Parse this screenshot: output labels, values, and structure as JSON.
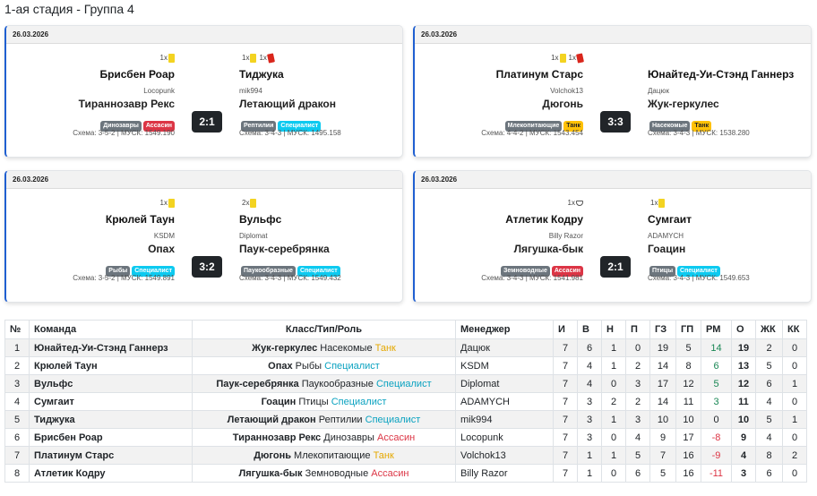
{
  "page_title": "1-ая стадия - Группа 4",
  "matches": [
    {
      "date": "26.03.2026",
      "score": "2:1",
      "home": {
        "cards": [
          {
            "count": "1x",
            "type": "yellow"
          }
        ],
        "team": "Брисбен Роар",
        "manager": "Locopunk",
        "class": "Тираннозавр Рекс",
        "badges": [
          {
            "label": "Динозавры",
            "color": "gray"
          },
          {
            "label": "Ассасин",
            "color": "red"
          }
        ],
        "scheme": "Схема: 3-5-2 | МУСК: 1549.190"
      },
      "away": {
        "cards": [
          {
            "count": "1x",
            "type": "yellow"
          },
          {
            "count": "1x",
            "type": "red"
          }
        ],
        "team": "Тиджука",
        "manager": "mik994",
        "class": "Летающий дракон",
        "badges": [
          {
            "label": "Рептилии",
            "color": "gray"
          },
          {
            "label": "Специалист",
            "color": "cyan"
          }
        ],
        "scheme": "Схема: 3-4-3 | МУСК: 1495.158"
      }
    },
    {
      "date": "26.03.2026",
      "score": "3:3",
      "home": {
        "cards": [
          {
            "count": "1x",
            "type": "yellow"
          },
          {
            "count": "1x",
            "type": "red"
          }
        ],
        "team": "Платинум Старс",
        "manager": "Volchok13",
        "class": "Дюгонь",
        "badges": [
          {
            "label": "Млекопитающие",
            "color": "gray"
          },
          {
            "label": "Танк",
            "color": "yellow"
          }
        ],
        "scheme": "Схема: 4-4-2 | МУСК: 1543.454"
      },
      "away": {
        "cards": [],
        "team": "Юнайтед-Уи-Стэнд Ганнерз",
        "manager": "Дацюк",
        "class": "Жук-геркулес",
        "badges": [
          {
            "label": "Насекомые",
            "color": "gray"
          },
          {
            "label": "Танк",
            "color": "yellow"
          }
        ],
        "scheme": "Схема: 3-4-3 | МУСК: 1538.280"
      }
    },
    {
      "date": "26.03.2026",
      "score": "3:2",
      "home": {
        "cards": [
          {
            "count": "1x",
            "type": "yellow"
          }
        ],
        "team": "Крюлей Таун",
        "manager": "KSDM",
        "class": "Опах",
        "badges": [
          {
            "label": "Рыбы",
            "color": "gray"
          },
          {
            "label": "Специалист",
            "color": "cyan"
          }
        ],
        "scheme": "Схема: 3-5-2 | МУСК: 1549.891"
      },
      "away": {
        "cards": [
          {
            "count": "2x",
            "type": "yellow"
          }
        ],
        "team": "Вульфс",
        "manager": "Diplomat",
        "class": "Паук-серебрянка",
        "badges": [
          {
            "label": "Паукообразные",
            "color": "gray"
          },
          {
            "label": "Специалист",
            "color": "cyan"
          }
        ],
        "scheme": "Схема: 3-4-3 | МУСК: 1549.432"
      }
    },
    {
      "date": "26.03.2026",
      "score": "2:1",
      "home": {
        "cards": [
          {
            "count": "1x",
            "type": "glove"
          }
        ],
        "team": "Атлетик Кодру",
        "manager": "Billy Razor",
        "class": "Лягушка-бык",
        "badges": [
          {
            "label": "Земноводные",
            "color": "gray"
          },
          {
            "label": "Ассасин",
            "color": "red"
          }
        ],
        "scheme": "Схема: 3-4-3 | МУСК: 1541.981"
      },
      "away": {
        "cards": [
          {
            "count": "1x",
            "type": "yellow"
          }
        ],
        "team": "Сумгаит",
        "manager": "ADAMYCH",
        "class": "Гоацин",
        "badges": [
          {
            "label": "Птицы",
            "color": "gray"
          },
          {
            "label": "Специалист",
            "color": "cyan"
          }
        ],
        "scheme": "Схема: 3-4-3 | МУСК: 1549.653"
      }
    }
  ],
  "standings": {
    "headers": [
      "№",
      "Команда",
      "Класс/Тип/Роль",
      "Менеджер",
      "И",
      "В",
      "Н",
      "П",
      "ГЗ",
      "ГП",
      "РМ",
      "О",
      "ЖК",
      "КК"
    ],
    "rows": [
      {
        "n": "1",
        "team": "Юнайтед-Уи-Стэнд Ганнерз",
        "cls": "Жук-геркулес",
        "type": "Насекомые",
        "role": "Танк",
        "role_kind": "tank",
        "manager": "Дацюк",
        "g": "7",
        "w": "6",
        "d": "1",
        "l": "0",
        "gf": "19",
        "ga": "5",
        "diff": "14",
        "pts": "19",
        "yc": "2",
        "rc": "0"
      },
      {
        "n": "2",
        "team": "Крюлей Таун",
        "cls": "Опах",
        "type": "Рыбы",
        "role": "Специалист",
        "role_kind": "spec",
        "manager": "KSDM",
        "g": "7",
        "w": "4",
        "d": "1",
        "l": "2",
        "gf": "14",
        "ga": "8",
        "diff": "6",
        "pts": "13",
        "yc": "5",
        "rc": "0"
      },
      {
        "n": "3",
        "team": "Вульфс",
        "cls": "Паук-серебрянка",
        "type": "Паукообразные",
        "role": "Специалист",
        "role_kind": "spec",
        "manager": "Diplomat",
        "g": "7",
        "w": "4",
        "d": "0",
        "l": "3",
        "gf": "17",
        "ga": "12",
        "diff": "5",
        "pts": "12",
        "yc": "6",
        "rc": "1"
      },
      {
        "n": "4",
        "team": "Сумгаит",
        "cls": "Гоацин",
        "type": "Птицы",
        "role": "Специалист",
        "role_kind": "spec",
        "manager": "ADAMYCH",
        "g": "7",
        "w": "3",
        "d": "2",
        "l": "2",
        "gf": "14",
        "ga": "11",
        "diff": "3",
        "pts": "11",
        "yc": "4",
        "rc": "0"
      },
      {
        "n": "5",
        "team": "Тиджука",
        "cls": "Летающий дракон",
        "type": "Рептилии",
        "role": "Специалист",
        "role_kind": "spec",
        "manager": "mik994",
        "g": "7",
        "w": "3",
        "d": "1",
        "l": "3",
        "gf": "10",
        "ga": "10",
        "diff": "0",
        "pts": "10",
        "yc": "5",
        "rc": "1"
      },
      {
        "n": "6",
        "team": "Брисбен Роар",
        "cls": "Тираннозавр Рекс",
        "type": "Динозавры",
        "role": "Ассасин",
        "role_kind": "ass",
        "manager": "Locopunk",
        "g": "7",
        "w": "3",
        "d": "0",
        "l": "4",
        "gf": "9",
        "ga": "17",
        "diff": "-8",
        "pts": "9",
        "yc": "4",
        "rc": "0"
      },
      {
        "n": "7",
        "team": "Платинум Старс",
        "cls": "Дюгонь",
        "type": "Млекопитающие",
        "role": "Танк",
        "role_kind": "tank",
        "manager": "Volchok13",
        "g": "7",
        "w": "1",
        "d": "1",
        "l": "5",
        "gf": "7",
        "ga": "16",
        "diff": "-9",
        "pts": "4",
        "yc": "8",
        "rc": "2"
      },
      {
        "n": "8",
        "team": "Атлетик Кодру",
        "cls": "Лягушка-бык",
        "type": "Земноводные",
        "role": "Ассасин",
        "role_kind": "ass",
        "manager": "Billy Razor",
        "g": "7",
        "w": "1",
        "d": "0",
        "l": "6",
        "gf": "5",
        "ga": "16",
        "diff": "-11",
        "pts": "3",
        "yc": "6",
        "rc": "0"
      }
    ]
  },
  "colors": {
    "accent": "#1f5fd1",
    "tank": "#e5a800",
    "spec": "#0aa2c0",
    "ass": "#dc3545",
    "pos": "#198754",
    "neg": "#dc3545"
  }
}
